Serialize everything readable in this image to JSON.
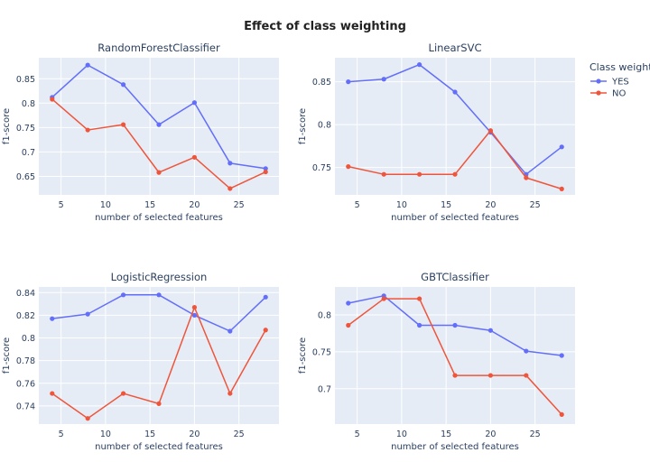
{
  "figure": {
    "title": "Effect of class weighting"
  },
  "legend": {
    "title": "Class weight",
    "placement": "top-right",
    "items": [
      {
        "name": "YES",
        "color": "#636efa"
      },
      {
        "name": "NO",
        "color": "#ef553b"
      }
    ]
  },
  "chart_data": [
    {
      "type": "line",
      "title": "RandomForestClassifier",
      "xlabel": "number of selected features",
      "ylabel": "f1-score",
      "xlim": [
        2.5,
        29.5
      ],
      "ylim": [
        0.612,
        0.893
      ],
      "xticks": [
        5,
        10,
        15,
        20,
        25
      ],
      "yticks": [
        0.65,
        0.7,
        0.75,
        0.8,
        0.85
      ],
      "x": [
        4,
        8,
        12,
        16,
        20,
        24,
        28
      ],
      "series": [
        {
          "name": "YES",
          "values": [
            0.812,
            0.878,
            0.838,
            0.756,
            0.801,
            0.677,
            0.666
          ]
        },
        {
          "name": "NO",
          "values": [
            0.808,
            0.745,
            0.756,
            0.658,
            0.689,
            0.625,
            0.659
          ]
        }
      ],
      "grid": true
    },
    {
      "type": "line",
      "title": "LinearSVC",
      "xlabel": "number of selected features",
      "ylabel": "f1-score",
      "xlim": [
        2.5,
        29.5
      ],
      "ylim": [
        0.718,
        0.878
      ],
      "xticks": [
        5,
        10,
        15,
        20,
        25
      ],
      "yticks": [
        0.75,
        0.8,
        0.85
      ],
      "x": [
        4,
        8,
        12,
        16,
        20,
        24,
        28
      ],
      "series": [
        {
          "name": "YES",
          "values": [
            0.85,
            0.853,
            0.87,
            0.838,
            0.791,
            0.742,
            0.774
          ]
        },
        {
          "name": "NO",
          "values": [
            0.751,
            0.742,
            0.742,
            0.742,
            0.793,
            0.738,
            0.725
          ]
        }
      ],
      "grid": true
    },
    {
      "type": "line",
      "title": "LogisticRegression",
      "xlabel": "number of selected features",
      "ylabel": "f1-score",
      "xlim": [
        2.5,
        29.5
      ],
      "ylim": [
        0.724,
        0.845
      ],
      "xticks": [
        5,
        10,
        15,
        20,
        25
      ],
      "yticks": [
        0.74,
        0.76,
        0.78,
        0.8,
        0.82,
        0.84
      ],
      "x": [
        4,
        8,
        12,
        16,
        20,
        24,
        28
      ],
      "series": [
        {
          "name": "YES",
          "values": [
            0.817,
            0.821,
            0.838,
            0.838,
            0.82,
            0.806,
            0.836
          ]
        },
        {
          "name": "NO",
          "values": [
            0.751,
            0.729,
            0.751,
            0.742,
            0.827,
            0.751,
            0.807
          ]
        }
      ],
      "grid": true
    },
    {
      "type": "line",
      "title": "GBTClassifier",
      "xlabel": "number of selected features",
      "ylabel": "f1-score",
      "xlim": [
        2.5,
        29.5
      ],
      "ylim": [
        0.652,
        0.838
      ],
      "xticks": [
        5,
        10,
        15,
        20,
        25
      ],
      "yticks": [
        0.7,
        0.75,
        0.8
      ],
      "x": [
        4,
        8,
        12,
        16,
        20,
        24,
        28
      ],
      "series": [
        {
          "name": "YES",
          "values": [
            0.816,
            0.826,
            0.786,
            0.786,
            0.779,
            0.751,
            0.745
          ]
        },
        {
          "name": "NO",
          "values": [
            0.786,
            0.822,
            0.822,
            0.718,
            0.718,
            0.718,
            0.665
          ]
        }
      ],
      "grid": true
    }
  ]
}
